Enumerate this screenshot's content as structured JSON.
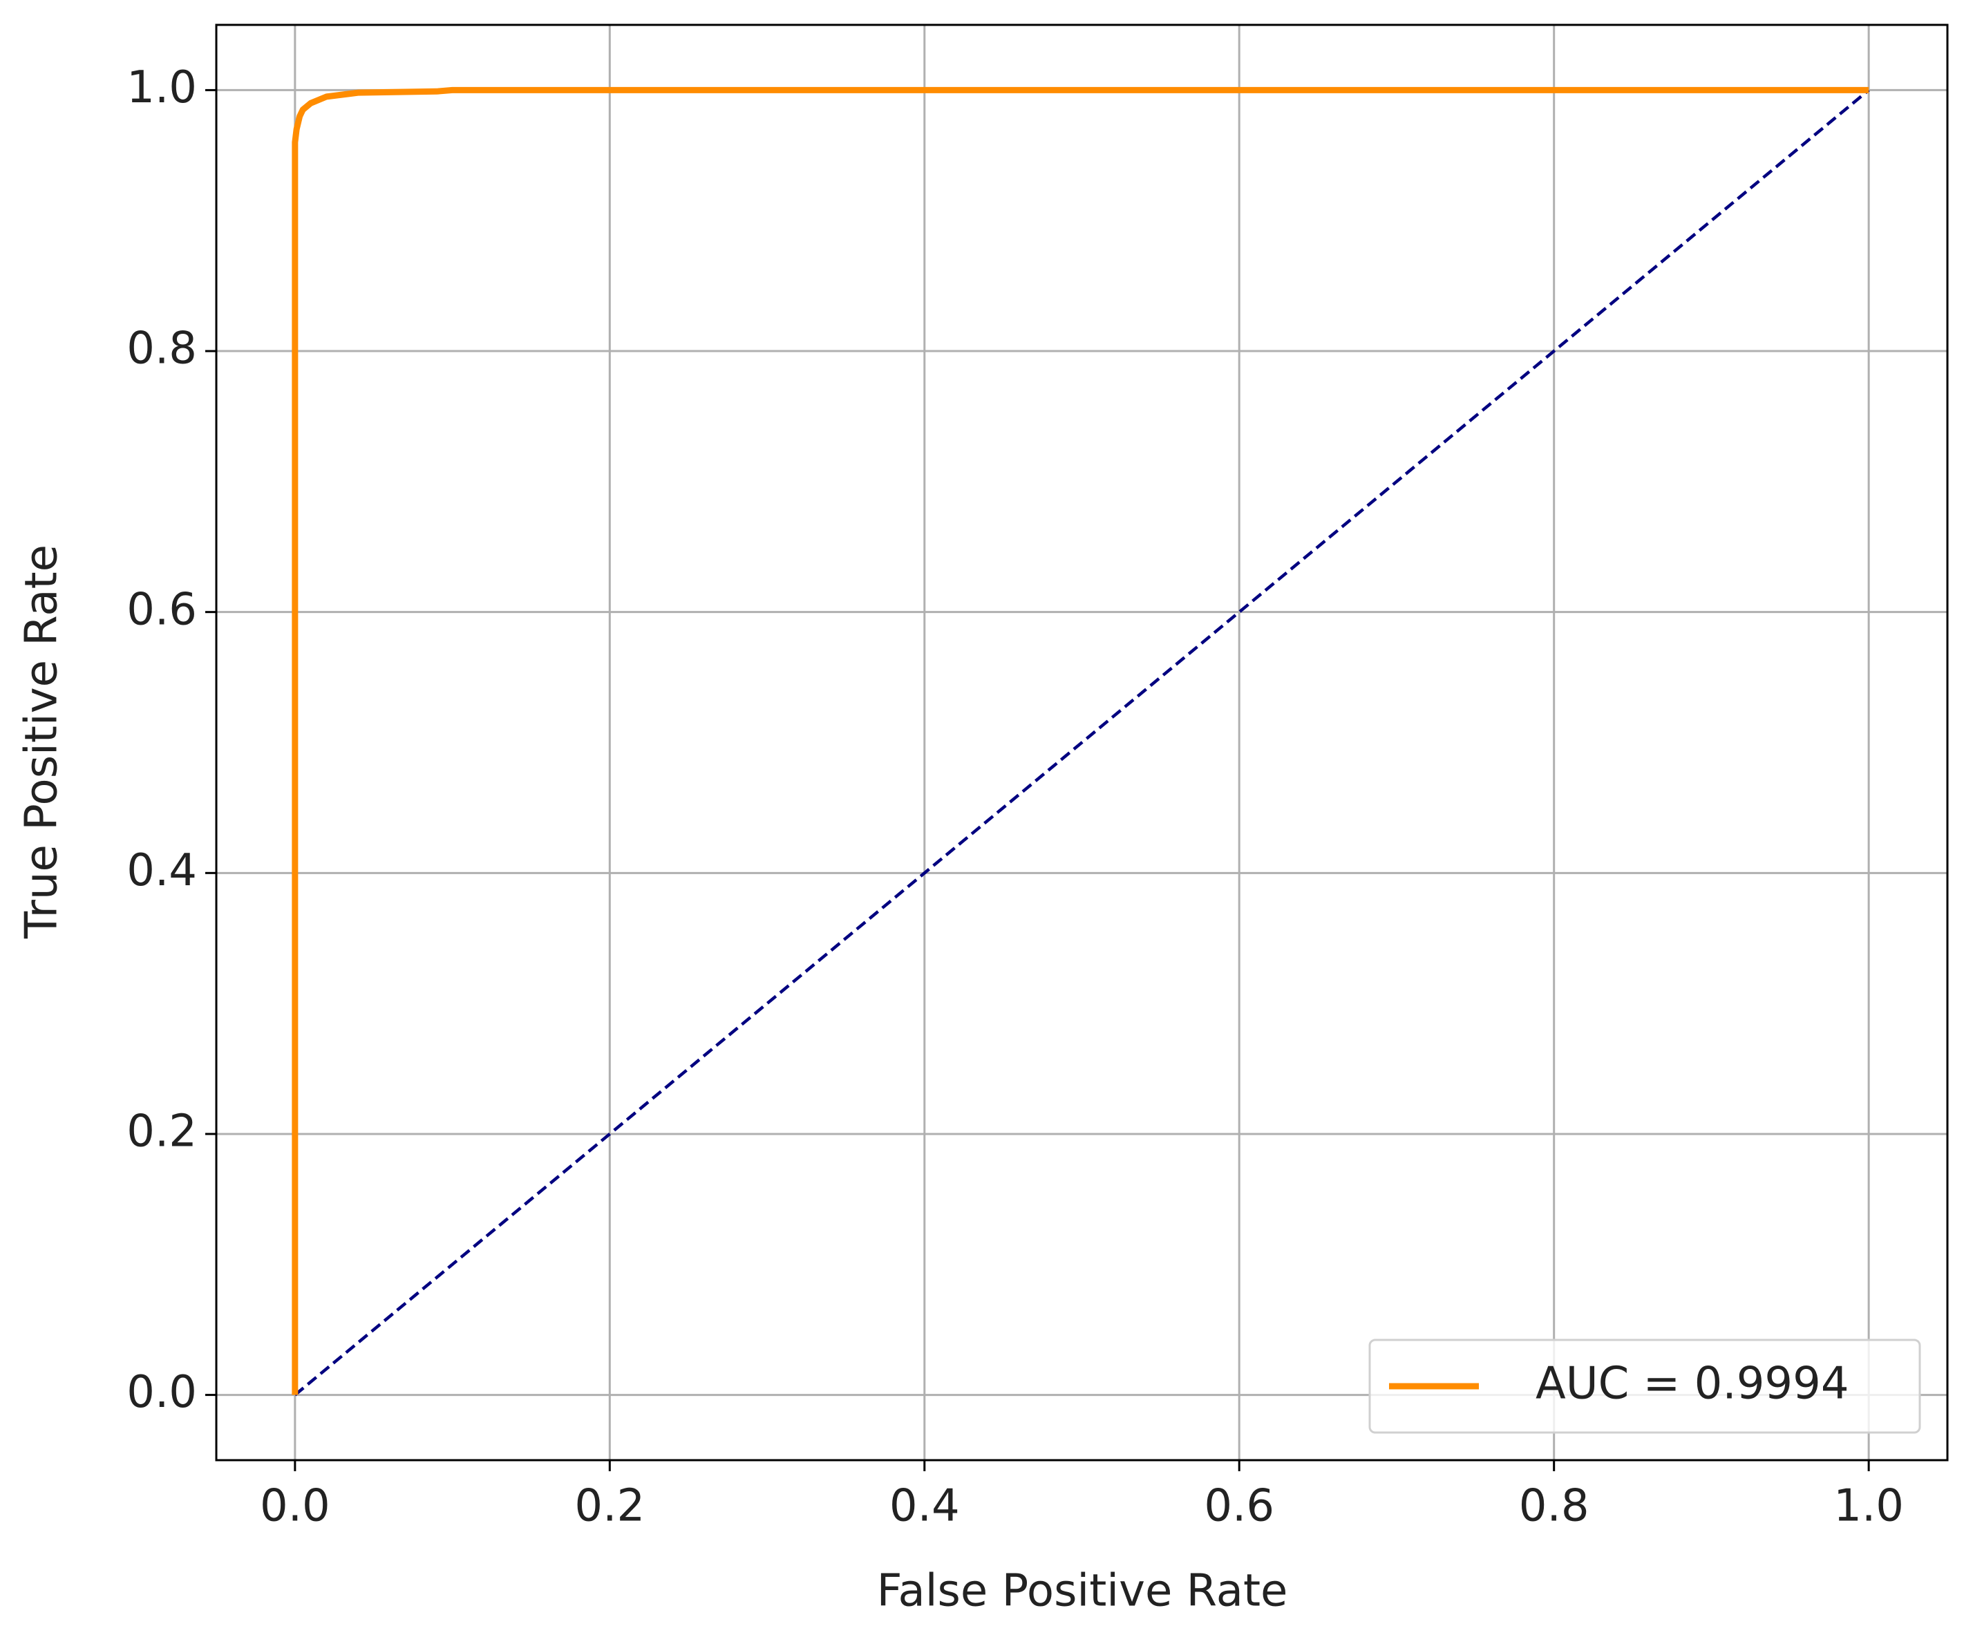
{
  "chart_data": {
    "type": "line",
    "xlabel": "False Positive Rate",
    "ylabel": "True Positive Rate",
    "series": [
      {
        "name": "AUC = 0.9994",
        "color": "#ff8c00",
        "style": "solid",
        "x": [
          0,
          0,
          0.001,
          0.003,
          0.005,
          0.01,
          0.02,
          0.04,
          0.09,
          0.1,
          1.0
        ],
        "values": [
          0,
          0.96,
          0.97,
          0.98,
          0.985,
          0.99,
          0.995,
          0.998,
          0.999,
          1.0,
          1.0
        ]
      },
      {
        "color": "#000080",
        "style": "dashed",
        "x": [
          0,
          1
        ],
        "values": [
          0,
          1
        ]
      }
    ],
    "xlim": [
      -0.05,
      1.05
    ],
    "ylim": [
      -0.05,
      1.05
    ],
    "xticks": [
      {
        "value": 0,
        "label": "0.0"
      },
      0.2,
      0.4,
      0.6,
      0.8,
      {
        "value": 1,
        "label": "1.0"
      }
    ],
    "yticks": [
      {
        "value": 0,
        "label": "0.0"
      },
      0.2,
      0.4,
      0.6,
      0.8,
      {
        "value": 1,
        "label": "1.0"
      }
    ],
    "grid": true,
    "legend": "lower right"
  }
}
